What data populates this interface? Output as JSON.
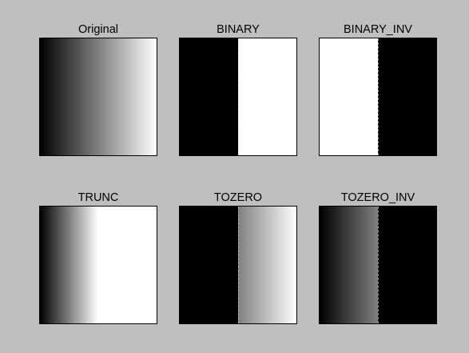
{
  "panels": [
    {
      "id": "original",
      "title": "Original"
    },
    {
      "id": "binary",
      "title": "BINARY"
    },
    {
      "id": "binary_inv",
      "title": "BINARY_INV"
    },
    {
      "id": "trunc",
      "title": "TRUNC"
    },
    {
      "id": "tozero",
      "title": "TOZERO"
    },
    {
      "id": "tozero_inv",
      "title": "TOZERO_INV"
    }
  ]
}
